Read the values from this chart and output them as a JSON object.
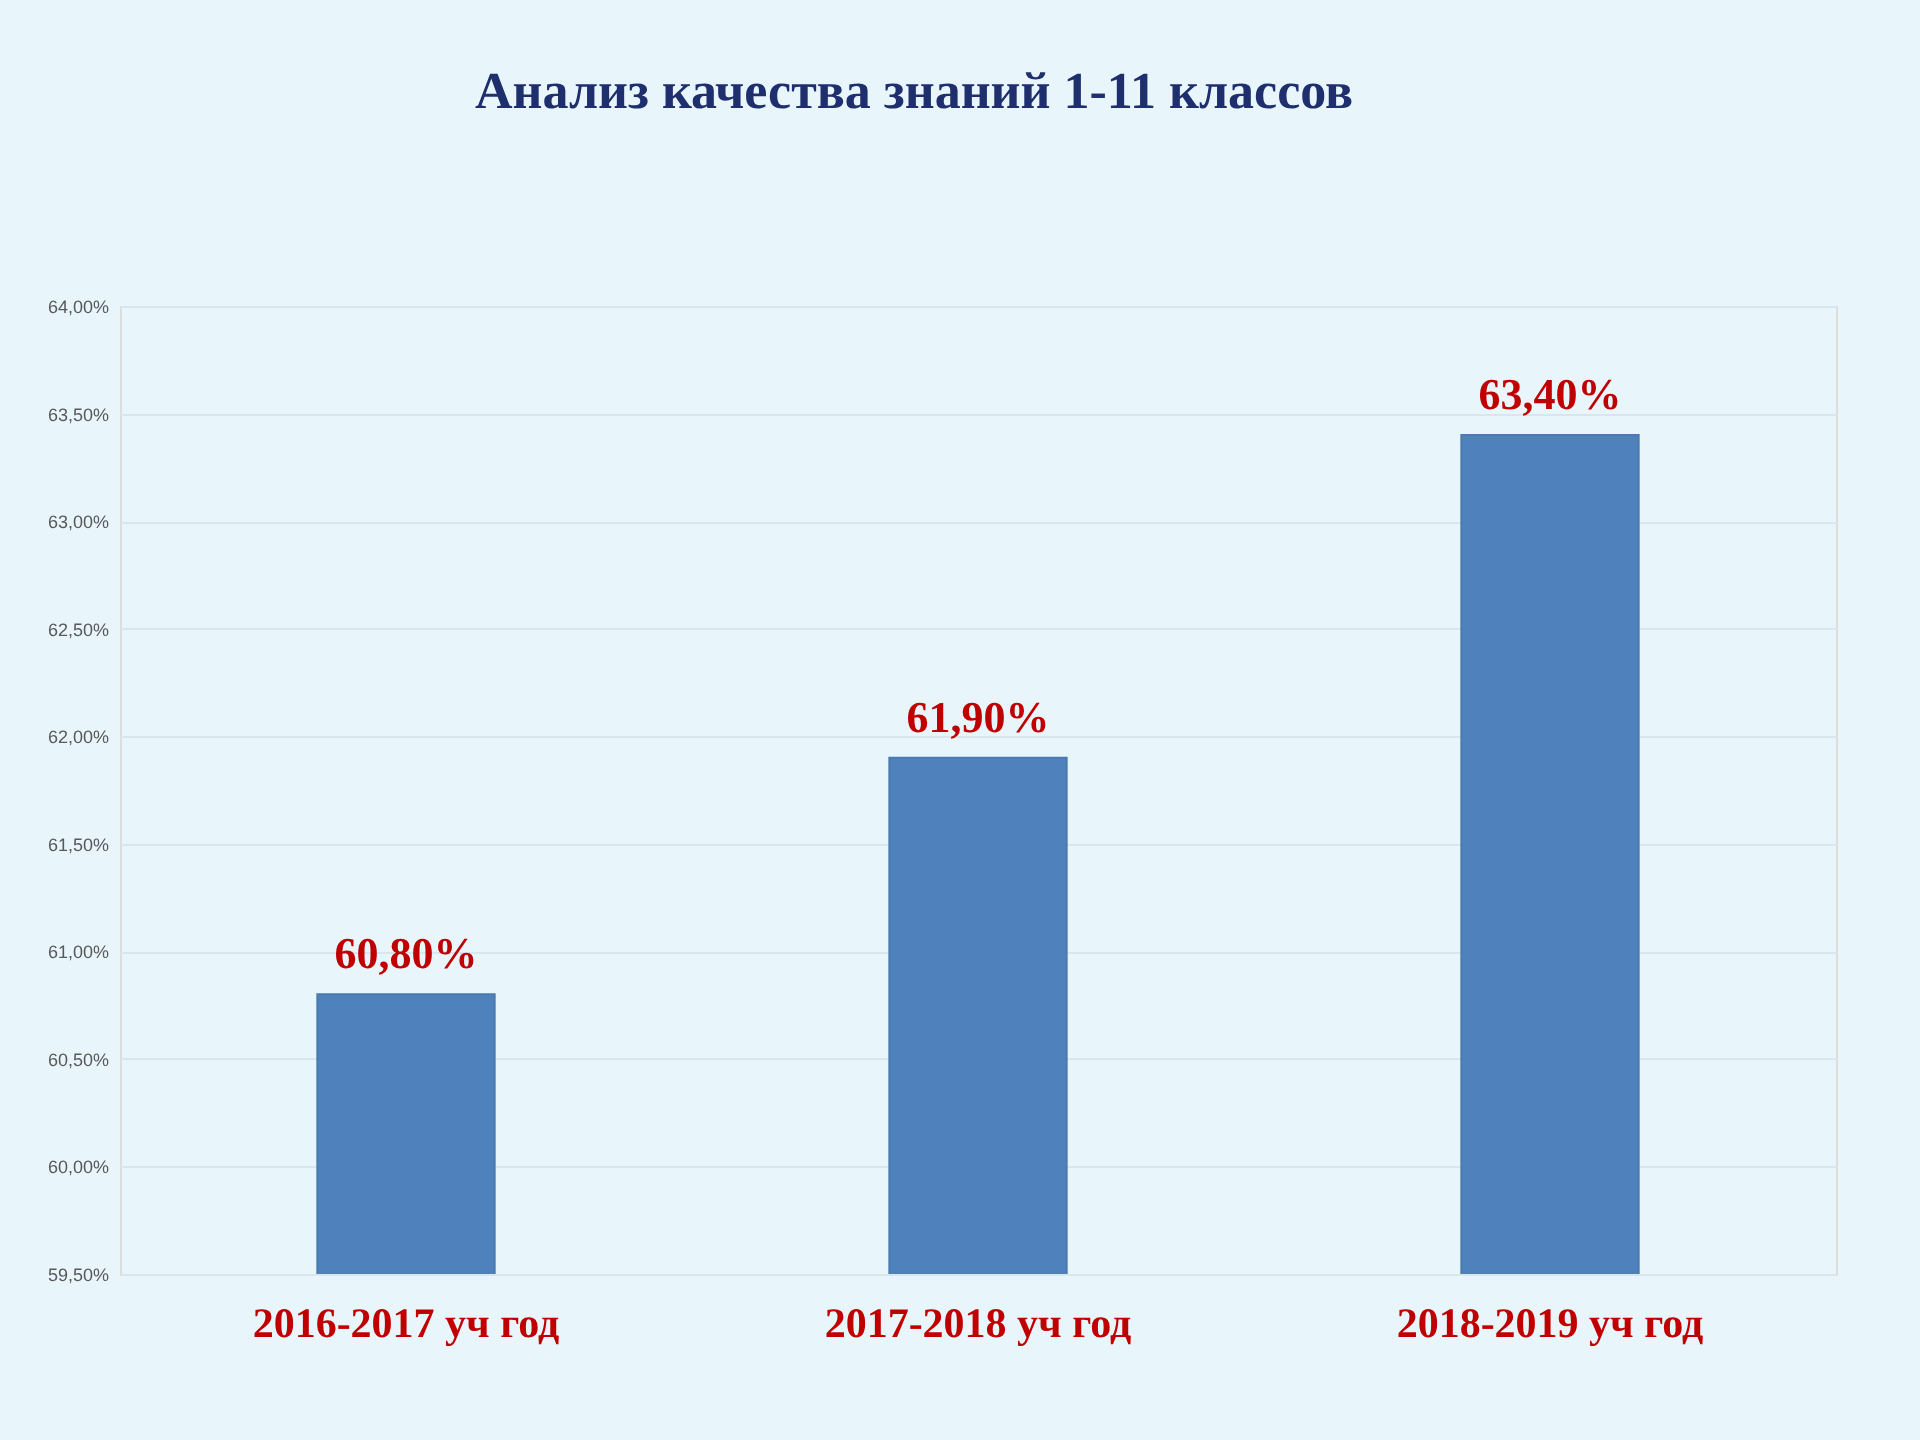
{
  "chart_data": {
    "type": "bar",
    "title": "Анализ качества знаний 1-11 классов",
    "categories": [
      "2016-2017 уч год",
      "2017-2018 уч год",
      "2018-2019 уч год"
    ],
    "values": [
      60.8,
      61.9,
      63.4
    ],
    "color": "#4f81bd",
    "value_labels": [
      "60,80%",
      "61,90%",
      "63,40%"
    ],
    "ylim": [
      59.5,
      64
    ],
    "yticks": [
      {
        "value": 59.5,
        "label": "59,50%"
      },
      {
        "value": 60,
        "label": "60,00%"
      },
      {
        "value": 60.5,
        "label": "60,50%"
      },
      {
        "value": 61,
        "label": "61,00%"
      },
      {
        "value": 61.5,
        "label": "61,50%"
      },
      {
        "value": 62,
        "label": "62,00%"
      },
      {
        "value": 62.5,
        "label": "62,50%"
      },
      {
        "value": 63,
        "label": "63,00%"
      },
      {
        "value": 63.5,
        "label": "63,50%"
      },
      {
        "value": 64,
        "label": "64,00%"
      }
    ],
    "grid": "y"
  }
}
